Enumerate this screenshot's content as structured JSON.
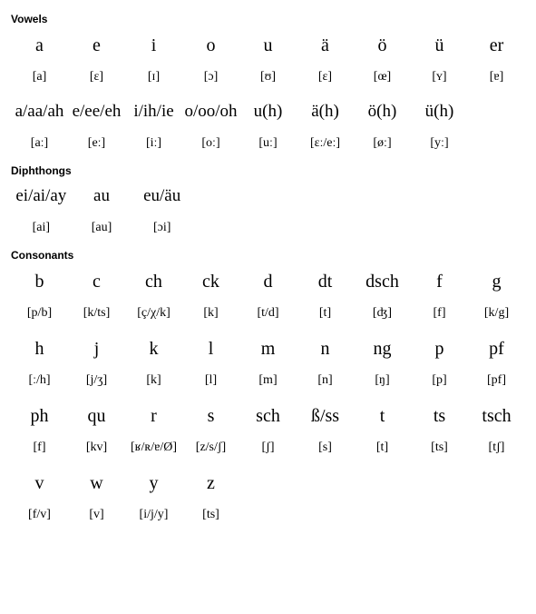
{
  "sections": {
    "vowels": {
      "title": "Vowels",
      "short": {
        "letters": [
          "a",
          "e",
          "i",
          "o",
          "u",
          "ä",
          "ö",
          "ü",
          "er"
        ],
        "ipa": [
          "[a]",
          "[ɛ]",
          "[ɪ]",
          "[ɔ]",
          "[ʊ]",
          "[ɛ]",
          "[œ]",
          "[ʏ]",
          "[ɐ]"
        ]
      },
      "long": {
        "letters": [
          "a/aa/ah",
          "e/ee/eh",
          "i/ih/ie",
          "o/oo/oh",
          "u(h)",
          "ä(h)",
          "ö(h)",
          "ü(h)"
        ],
        "ipa": [
          "[aː]",
          "[eː]",
          "[iː]",
          "[oː]",
          "[uː]",
          "[ɛː/eː]",
          "[øː]",
          "[yː]"
        ]
      }
    },
    "diphthongs": {
      "title": "Diphthongs",
      "row": {
        "letters": [
          "ei/ai/ay",
          "au",
          "eu/äu"
        ],
        "ipa": [
          "[ai]",
          "[au]",
          "[ɔi]"
        ]
      }
    },
    "consonants": {
      "title": "Consonants",
      "r1": {
        "letters": [
          "b",
          "c",
          "ch",
          "ck",
          "d",
          "dt",
          "dsch",
          "f",
          "g"
        ],
        "ipa": [
          "[p/b]",
          "[k/ts]",
          "[ç/χ/k]",
          "[k]",
          "[t/d]",
          "[t]",
          "[ʤ]",
          "[f]",
          "[k/g]"
        ]
      },
      "r2": {
        "letters": [
          "h",
          "j",
          "k",
          "l",
          "m",
          "n",
          "ng",
          "p",
          "pf"
        ],
        "ipa": [
          "[ː/h]",
          "[j/ʒ]",
          "[k]",
          "[l]",
          "[m]",
          "[n]",
          "[ŋ]",
          "[p]",
          "[pf]"
        ]
      },
      "r3": {
        "letters": [
          "ph",
          "qu",
          "r",
          "s",
          "sch",
          "ß/ss",
          "t",
          "ts",
          "tsch"
        ],
        "ipa": [
          "[f]",
          "[kv]",
          "[ʁ/ʀ/ɐ/Ø]",
          "[z/s/ʃ]",
          "[ʃ]",
          "[s]",
          "[t]",
          "[ts]",
          "[tʃ]"
        ]
      },
      "r4": {
        "letters": [
          "v",
          "w",
          "y",
          "z"
        ],
        "ipa": [
          "[f/v]",
          "[v]",
          "[i/j/y]",
          "[ts]"
        ]
      }
    }
  }
}
